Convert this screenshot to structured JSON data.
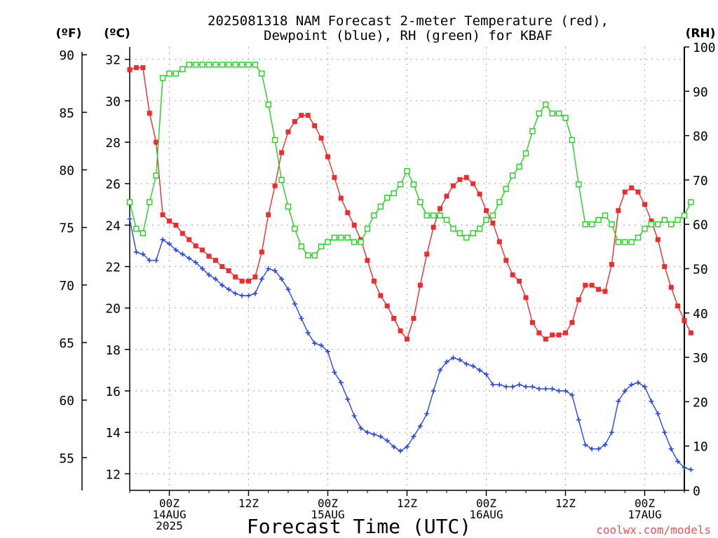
{
  "header": {
    "title_line1": "2025081318 NAM Forecast 2-meter Temperature (red),",
    "title_line2": "Dewpoint (blue), RH (green) for KBAF"
  },
  "axes": {
    "fahrenheit_unit": "(ºF)",
    "celsius_unit": "(ºC)",
    "rh_unit": "(RH)",
    "xlabel": "Forecast Time (UTC)"
  },
  "credit": "coolwx.com/models",
  "colors": {
    "temperature": "#ee2c2c",
    "dewpoint": "#2747e8",
    "rh": "#22d11f",
    "grid": "#b0b0b0",
    "credit": "#e8545a"
  },
  "chart_data": {
    "type": "line",
    "start_time": "2025-08-13 18Z",
    "time_step_hours": 1,
    "xlim_hours": [
      0,
      84
    ],
    "x_ticks": [
      {
        "hour": 6,
        "line1": "00Z",
        "line2": "14AUG",
        "line3": "2025"
      },
      {
        "hour": 18,
        "line1": "12Z",
        "line2": "",
        "line3": ""
      },
      {
        "hour": 30,
        "line1": "00Z",
        "line2": "15AUG",
        "line3": ""
      },
      {
        "hour": 42,
        "line1": "12Z",
        "line2": "",
        "line3": ""
      },
      {
        "hour": 54,
        "line1": "00Z",
        "line2": "16AUG",
        "line3": ""
      },
      {
        "hour": 66,
        "line1": "12Z",
        "line2": "",
        "line3": ""
      },
      {
        "hour": 78,
        "line1": "00Z",
        "line2": "17AUG",
        "line3": ""
      }
    ],
    "celsius_axis": {
      "ylim": [
        11.2,
        32.6
      ],
      "ticks": [
        12,
        14,
        16,
        18,
        20,
        22,
        24,
        26,
        28,
        30,
        32
      ]
    },
    "fahrenheit_axis": {
      "ticks": [
        55,
        60,
        65,
        70,
        75,
        80,
        85,
        90
      ]
    },
    "rh_axis": {
      "ylim": [
        0,
        100
      ],
      "ticks": [
        0,
        10,
        20,
        30,
        40,
        50,
        60,
        70,
        80,
        90,
        100
      ]
    },
    "grid": true,
    "series": [
      {
        "name": "Temperature",
        "axis": "celsius",
        "marker": "filled-square",
        "values": [
          31.5,
          31.6,
          31.6,
          29.4,
          28.0,
          24.5,
          24.2,
          24.0,
          23.6,
          23.3,
          23.0,
          22.8,
          22.5,
          22.3,
          22.0,
          21.8,
          21.5,
          21.3,
          21.3,
          21.5,
          22.7,
          24.5,
          25.9,
          27.5,
          28.5,
          29.0,
          29.3,
          29.3,
          28.8,
          28.2,
          27.3,
          26.3,
          25.3,
          24.6,
          24.0,
          23.3,
          22.3,
          21.3,
          20.6,
          20.1,
          19.5,
          18.9,
          18.5,
          19.5,
          21.1,
          22.6,
          23.9,
          24.8,
          25.4,
          25.9,
          26.2,
          26.3,
          26.0,
          25.5,
          24.7,
          24.1,
          23.2,
          22.3,
          21.6,
          21.3,
          20.5,
          19.3,
          18.8,
          18.5,
          18.7,
          18.7,
          18.8,
          19.3,
          20.4,
          21.1,
          21.1,
          20.9,
          20.8,
          22.1,
          24.7,
          25.6,
          25.8,
          25.6,
          25.0,
          24.2,
          23.3,
          22.0,
          21.0,
          20.1,
          19.4,
          18.8
        ]
      },
      {
        "name": "Dewpoint",
        "axis": "celsius",
        "marker": "plus",
        "values": [
          24.3,
          22.7,
          22.6,
          22.3,
          22.3,
          23.3,
          23.1,
          22.8,
          22.6,
          22.4,
          22.2,
          21.9,
          21.6,
          21.4,
          21.1,
          20.9,
          20.7,
          20.6,
          20.6,
          20.7,
          21.4,
          21.9,
          21.8,
          21.4,
          20.9,
          20.2,
          19.5,
          18.8,
          18.3,
          18.2,
          17.9,
          16.9,
          16.4,
          15.6,
          14.8,
          14.2,
          14.0,
          13.9,
          13.8,
          13.6,
          13.3,
          13.1,
          13.3,
          13.8,
          14.3,
          14.9,
          16.0,
          17.0,
          17.4,
          17.6,
          17.5,
          17.3,
          17.2,
          17.0,
          16.8,
          16.3,
          16.3,
          16.2,
          16.2,
          16.3,
          16.2,
          16.2,
          16.1,
          16.1,
          16.1,
          16.0,
          16.0,
          15.8,
          14.6,
          13.4,
          13.2,
          13.2,
          13.4,
          14.0,
          15.5,
          16.0,
          16.3,
          16.4,
          16.2,
          15.5,
          14.9,
          14.0,
          13.2,
          12.6,
          12.3,
          12.2
        ]
      },
      {
        "name": "RH",
        "axis": "rh",
        "marker": "open-square",
        "values": [
          65,
          59,
          58,
          65,
          71,
          93,
          94,
          94,
          95,
          96,
          96,
          96,
          96,
          96,
          96,
          96,
          96,
          96,
          96,
          96,
          94,
          87,
          79,
          70,
          64,
          59,
          55,
          53,
          53,
          55,
          56,
          57,
          57,
          57,
          56,
          56,
          59,
          62,
          64,
          66,
          67,
          69,
          72,
          69,
          65,
          62,
          62,
          62,
          61,
          59,
          58,
          57,
          58,
          59,
          61,
          62,
          65,
          68,
          71,
          73,
          76,
          81,
          85,
          87,
          85,
          85,
          84,
          79,
          69,
          60,
          60,
          61,
          62,
          60,
          56,
          56,
          56,
          57,
          59,
          60,
          60,
          61,
          60,
          61,
          62,
          65
        ]
      }
    ]
  }
}
